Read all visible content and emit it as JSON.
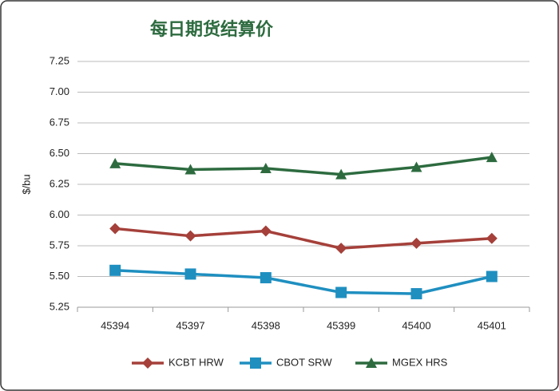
{
  "chart_data": {
    "type": "line",
    "title": "每日期货结算价",
    "y_label": "$/bu",
    "categories": [
      "45394",
      "45397",
      "45398",
      "45399",
      "45400",
      "45401"
    ],
    "series": [
      {
        "name": "KCBT HRW",
        "color": "#a5403a",
        "marker": "diamond",
        "values": [
          5.89,
          5.83,
          5.87,
          5.73,
          5.77,
          5.81
        ]
      },
      {
        "name": "CBOT SRW",
        "color": "#1f8fc0",
        "marker": "square",
        "values": [
          5.55,
          5.52,
          5.49,
          5.37,
          5.36,
          5.5
        ]
      },
      {
        "name": "MGEX HRS",
        "color": "#2d6b3f",
        "marker": "triangle",
        "values": [
          6.42,
          6.37,
          6.38,
          6.33,
          6.39,
          6.47
        ]
      }
    ],
    "ylim": [
      5.25,
      7.25
    ],
    "yticks": [
      5.25,
      {
        "value": 5.5,
        "label": "5.50"
      },
      5.75,
      {
        "value": 6,
        "label": "6.00"
      },
      6.25,
      {
        "value": 6.5,
        "label": "6.50"
      },
      6.75,
      {
        "value": 7,
        "label": "7.00"
      },
      7.25
    ],
    "grid": true,
    "legend": "bottom"
  }
}
